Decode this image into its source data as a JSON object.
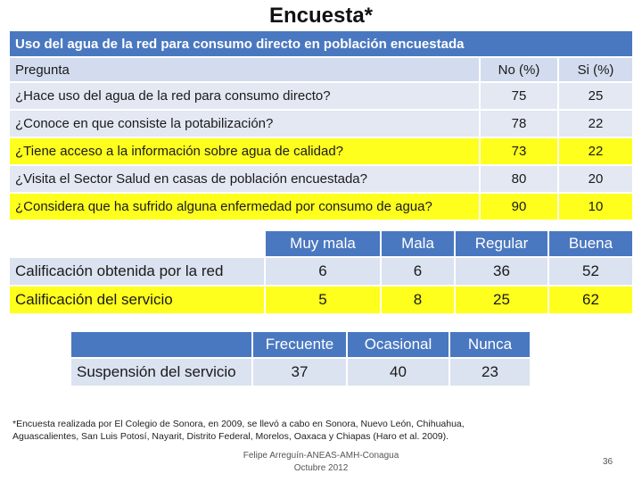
{
  "title": "Encuesta*",
  "table1": {
    "header": "Uso del agua de la red para consumo directo en población encuestada",
    "columns": {
      "pregunta": "Pregunta",
      "no": "No (%)",
      "si": "Si (%)"
    },
    "rows": [
      {
        "q": "¿Hace uso del agua de la red para consumo directo?",
        "no": "75",
        "si": "25"
      },
      {
        "q": "¿Conoce en que consiste la potabilización?",
        "no": "78",
        "si": "22"
      },
      {
        "q": "¿Tiene acceso a la información sobre agua de calidad?",
        "no": "73",
        "si": "22"
      },
      {
        "q": "¿Visita el Sector Salud en casas de población encuestada?",
        "no": "80",
        "si": "20"
      },
      {
        "q": "¿Considera que ha sufrido alguna enfermedad por consumo de agua?",
        "no": "90",
        "si": "10"
      }
    ]
  },
  "table2": {
    "columns": [
      "Muy mala",
      "Mala",
      "Regular",
      "Buena"
    ],
    "rows": [
      {
        "label": "Calificación obtenida por la red",
        "values": [
          "6",
          "6",
          "36",
          "52"
        ]
      },
      {
        "label": "Calificación del servicio",
        "values": [
          "5",
          "8",
          "25",
          "62"
        ]
      }
    ]
  },
  "table3": {
    "columns": [
      "Frecuente",
      "Ocasional",
      "Nunca"
    ],
    "row": {
      "label": "Suspensión del servicio",
      "values": [
        "37",
        "40",
        "23"
      ]
    }
  },
  "footnote": {
    "line1": "*Encuesta realizada por El Colegio de Sonora, en 2009, se llevó a cabo en Sonora, Nuevo León, Chihuahua,",
    "line2": "Aguascalientes, San Luis Potosí, Nayarit, Distrito Federal, Morelos, Oaxaca y Chiapas (Haro et al. 2009)."
  },
  "credit": {
    "line1": "Felipe Arreguín-ANEAS-AMH-Conagua",
    "line2": "Octubre 2012"
  },
  "page_number": "36"
}
